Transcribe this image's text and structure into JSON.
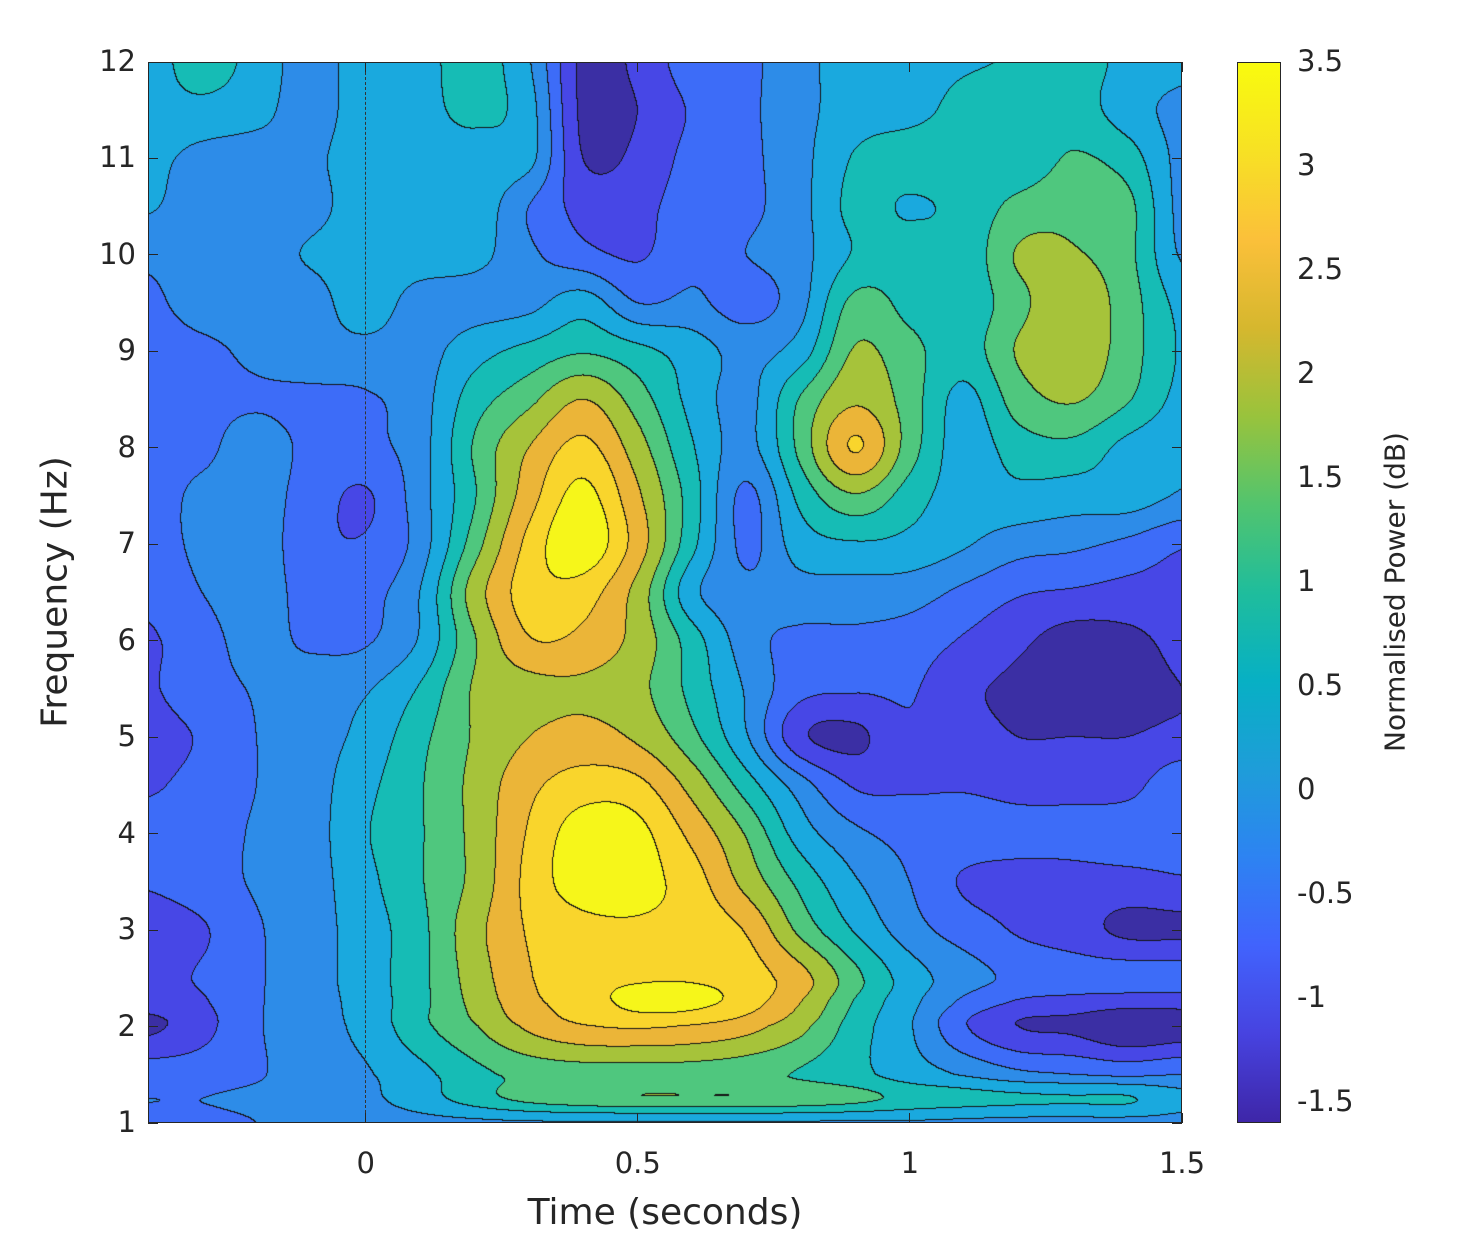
{
  "chart_data": {
    "type": "heatmap",
    "subtype": "filled-contour",
    "xlabel": "Time (seconds)",
    "ylabel": "Frequency (Hz)",
    "colorbar_label": "Normalised Power (dB)",
    "xlim": [
      -0.4,
      1.5
    ],
    "ylim": [
      1,
      12
    ],
    "clim": [
      -1.6,
      3.5
    ],
    "xticks": [
      0,
      0.5,
      1,
      1.5
    ],
    "xtick_labels": [
      "0",
      "0.5",
      "1",
      "1.5"
    ],
    "yticks": [
      1,
      2,
      3,
      4,
      5,
      6,
      7,
      8,
      9,
      10,
      11,
      12
    ],
    "ytick_labels": [
      "1",
      "2",
      "3",
      "4",
      "5",
      "6",
      "7",
      "8",
      "9",
      "10",
      "11",
      "12"
    ],
    "cticks": [
      -1.5,
      -1,
      -0.5,
      0,
      0.5,
      1,
      1.5,
      2,
      2.5,
      3,
      3.5
    ],
    "ctick_labels": [
      "-1.5",
      "-1",
      "-0.5",
      "0",
      "0.5",
      "1",
      "1.5",
      "2",
      "2.5",
      "3",
      "3.5"
    ],
    "event_marker_time": 0,
    "grid": false,
    "contour_levels": [
      -1.3,
      -0.85,
      -0.4,
      0.05,
      0.55,
      1.05,
      1.55,
      2.1,
      2.65,
      3.15
    ],
    "band_colors": [
      "#3b2fa4",
      "#4747e6",
      "#3d6cf8",
      "#2d8ce8",
      "#1aa9de",
      "#16bcb5",
      "#4fc77e",
      "#a6c33a",
      "#ebb538",
      "#f9d52c",
      "#f6f61a"
    ],
    "colormap": [
      "#3e26a8",
      "#4743e0",
      "#4163fd",
      "#2d83f2",
      "#1e9dd9",
      "#07b0c4",
      "#1fbd9c",
      "#52c46e",
      "#99c33c",
      "#d6b72e",
      "#fbc03a",
      "#f7e124",
      "#f9fb0e"
    ],
    "time": [
      -0.4,
      -0.3,
      -0.2,
      -0.1,
      0,
      0.1,
      0.2,
      0.3,
      0.4,
      0.5,
      0.6,
      0.7,
      0.8,
      0.9,
      1.0,
      1.1,
      1.2,
      1.3,
      1.4,
      1.5
    ],
    "frequency": [
      1,
      1.25,
      1.5,
      2,
      2.25,
      2.5,
      3,
      3.5,
      4,
      4.5,
      5,
      5.5,
      6,
      6.5,
      7,
      7.5,
      8,
      8.5,
      9,
      9.5,
      10,
      10.5,
      11,
      11.5,
      12
    ],
    "power": [
      [
        -0.5,
        -0.5,
        -0.4,
        -0.2,
        -0.15,
        -0.1,
        -0.05,
        0,
        0,
        0,
        0,
        0,
        0,
        0,
        0,
        -0.05,
        -0.1,
        -0.1,
        -0.1,
        -0.1
      ],
      [
        -0.4,
        -0.4,
        -0.3,
        -0.15,
        -0.05,
        0.3,
        0.8,
        1.2,
        1.4,
        1.5,
        1.5,
        1.5,
        1.4,
        1.2,
        0.9,
        0.75,
        0.65,
        0.6,
        0.6,
        0.2
      ],
      [
        -0.6,
        -0.6,
        -0.45,
        -0.15,
        0.0,
        0.4,
        0.9,
        1.2,
        1.3,
        1.3,
        1.3,
        1.2,
        1.0,
        0.7,
        0.3,
        0.0,
        -0.3,
        -0.4,
        -0.5,
        -0.4
      ],
      [
        -1.4,
        -1.0,
        -0.45,
        -0.15,
        0.2,
        0.9,
        1.5,
        2.2,
        2.6,
        2.7,
        2.6,
        2.3,
        1.7,
        0.8,
        0.1,
        -0.8,
        -1.3,
        -1.4,
        -1.7,
        -1.6
      ],
      [
        -1.1,
        -0.9,
        -0.45,
        -0.15,
        0.25,
        0.9,
        1.7,
        2.5,
        2.9,
        3.3,
        3.3,
        2.9,
        2.1,
        1.0,
        0.2,
        -0.5,
        -0.9,
        -1.0,
        -1.1,
        -1.1
      ],
      [
        -1.0,
        -0.8,
        -0.45,
        -0.15,
        0.3,
        0.9,
        1.8,
        2.6,
        3.0,
        3.1,
        3.1,
        2.9,
        2.3,
        1.2,
        0.3,
        -0.2,
        -0.5,
        -0.6,
        -0.6,
        -0.6
      ],
      [
        -1.1,
        -0.9,
        -0.45,
        -0.15,
        0.3,
        0.9,
        1.9,
        2.7,
        3.0,
        3.1,
        3.0,
        2.6,
        1.4,
        0.5,
        -0.2,
        -0.6,
        -0.9,
        -1.1,
        -1.4,
        -1.4
      ],
      [
        -0.8,
        -0.6,
        -0.35,
        -0.15,
        0.4,
        1.0,
        1.7,
        2.8,
        3.4,
        3.3,
        2.9,
        1.9,
        0.9,
        0.1,
        -0.4,
        -0.9,
        -1.0,
        -1.0,
        -1.0,
        -0.9
      ],
      [
        -0.7,
        -0.6,
        -0.35,
        -0.15,
        0.5,
        1.0,
        1.7,
        2.7,
        3.4,
        3.3,
        2.5,
        1.5,
        0.3,
        -0.3,
        -0.55,
        -0.6,
        -0.7,
        -0.7,
        -0.6,
        -0.6
      ],
      [
        -0.9,
        -0.7,
        -0.4,
        -0.15,
        0.4,
        1.0,
        1.7,
        2.5,
        2.9,
        2.8,
        1.9,
        0.8,
        -0.2,
        -0.9,
        -0.9,
        -0.9,
        -1.0,
        -1.0,
        -1.0,
        -0.5
      ],
      [
        -1.0,
        -0.8,
        -0.4,
        -0.15,
        0.2,
        0.9,
        1.6,
        2.1,
        2.3,
        2.0,
        1.2,
        0.1,
        -1.2,
        -1.4,
        -0.9,
        -1.1,
        -1.3,
        -1.3,
        -1.3,
        -1.2
      ],
      [
        -0.9,
        -0.6,
        -0.35,
        -0.1,
        0.0,
        0.6,
        1.6,
        1.9,
        2.0,
        1.7,
        0.9,
        0.0,
        -0.7,
        -0.8,
        -0.8,
        -1.2,
        -1.4,
        -1.6,
        -1.4,
        -1.3
      ],
      [
        -0.9,
        -0.6,
        -0.2,
        -0.5,
        -0.45,
        0.1,
        1.5,
        2.6,
        2.5,
        1.9,
        0.8,
        -0.2,
        -0.5,
        -0.5,
        -0.6,
        -0.9,
        -1.2,
        -1.5,
        -1.4,
        -1.2
      ],
      [
        -0.75,
        -0.4,
        -0.15,
        -0.6,
        -0.55,
        0.05,
        1.8,
        2.9,
        2.9,
        1.9,
        0.2,
        -0.3,
        -0.15,
        -0.15,
        -0.2,
        -0.5,
        -0.8,
        -0.9,
        -1.0,
        -1.0
      ],
      [
        -0.6,
        -0.3,
        -0.15,
        -0.7,
        -0.8,
        -0.2,
        1.3,
        2.8,
        3.5,
        2.4,
        0.7,
        -0.5,
        0.3,
        0.5,
        0.4,
        0.1,
        -0.2,
        -0.3,
        -0.5,
        -0.8
      ],
      [
        -0.6,
        -0.3,
        -0.2,
        -0.6,
        -0.9,
        -0.15,
        1.0,
        2.4,
        3.3,
        2.2,
        0.8,
        -0.5,
        0.7,
        1.5,
        0.8,
        0.3,
        0.4,
        0.3,
        0.3,
        0.0
      ],
      [
        -0.6,
        -0.5,
        -0.2,
        -0.5,
        -0.5,
        -0.15,
        1.1,
        2.1,
        2.8,
        1.8,
        0.6,
        -0.1,
        1.2,
        2.7,
        1.3,
        0.3,
        0.8,
        0.9,
        0.4,
        0.1
      ],
      [
        -0.6,
        -0.5,
        -0.45,
        -0.5,
        -0.45,
        -0.15,
        0.8,
        1.4,
        2.1,
        1.3,
        0.4,
        -0.1,
        1.1,
        2.0,
        1.3,
        0.4,
        1.3,
        1.6,
        1.1,
        0.4
      ],
      [
        -0.6,
        -0.5,
        -0.3,
        -0.15,
        -0.1,
        -0.15,
        0.35,
        0.7,
        1.0,
        0.7,
        0.3,
        -0.1,
        0.3,
        1.6,
        1.2,
        0.8,
        1.6,
        1.9,
        1.3,
        0.5
      ],
      [
        -0.5,
        -0.2,
        -0.15,
        -0.15,
        0.3,
        -0.15,
        -0.15,
        -0.1,
        0.3,
        -0.4,
        -0.3,
        -0.6,
        -0.1,
        1.2,
        0.9,
        0.7,
        1.4,
        1.9,
        1.3,
        0.4
      ],
      [
        -0.3,
        -0.2,
        -0.15,
        0.1,
        0.3,
        0.3,
        0.2,
        -0.3,
        -0.7,
        -0.9,
        -0.5,
        -0.4,
        -0.1,
        0.6,
        0.8,
        0.7,
        1.6,
        1.6,
        1.2,
        0.0
      ],
      [
        0.1,
        -0.2,
        -0.15,
        -0.1,
        0.3,
        0.3,
        0.35,
        -0.4,
        -1.0,
        -1.0,
        -0.6,
        -0.5,
        -0.1,
        0.7,
        0.5,
        0.7,
        1.2,
        1.4,
        1.2,
        -0.1
      ],
      [
        0.2,
        -0.1,
        -0.15,
        -0.05,
        0.3,
        0.3,
        0.3,
        0.2,
        -1.3,
        -1.2,
        -0.7,
        -0.5,
        -0.1,
        0.6,
        0.8,
        0.8,
        0.7,
        1.1,
        0.8,
        -0.1
      ],
      [
        0.35,
        0.4,
        0.2,
        -0.15,
        0.3,
        0.35,
        0.7,
        0.25,
        -1.4,
        -1.3,
        -0.8,
        -0.5,
        -0.1,
        0.3,
        0.4,
        0.7,
        0.8,
        0.8,
        0.3,
        -0.1
      ],
      [
        0.3,
        0.8,
        0.35,
        -0.15,
        0.3,
        0.35,
        0.8,
        0.1,
        -1.4,
        -1.2,
        -0.6,
        -0.5,
        -0.1,
        0.3,
        0.4,
        0.5,
        0.6,
        0.8,
        0.4,
        0.2
      ]
    ]
  }
}
